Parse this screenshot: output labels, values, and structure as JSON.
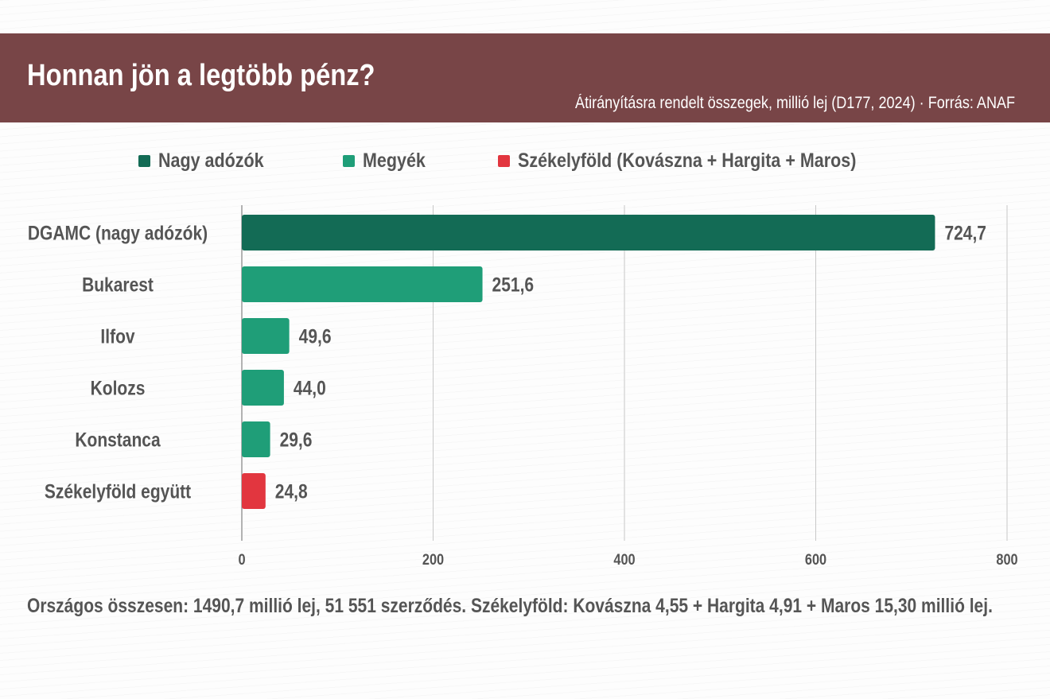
{
  "header": {
    "title": "Honnan jön a legtöbb pénz?",
    "subtitle": "Átirányításra rendelt összegek, millió lej (D177, 2024) · Forrás: ANAF"
  },
  "legend": {
    "items": [
      {
        "label": "Nagy adózók",
        "color": "#136b55"
      },
      {
        "label": "Megyék",
        "color": "#1f9e78"
      },
      {
        "label": "Székelyföld (Kovászna + Hargita + Maros)",
        "color": "#e2363f"
      }
    ]
  },
  "chart_data": {
    "type": "bar",
    "orientation": "horizontal",
    "categories": [
      "DGAMC (nagy adózók)",
      "Bukarest",
      "Ilfov",
      "Kolozs",
      "Konstanca",
      "Székelyföld együtt"
    ],
    "values": [
      724.7,
      251.6,
      49.6,
      44.0,
      29.6,
      24.8
    ],
    "value_labels": [
      "724,7",
      "251,6",
      "49,6",
      "44,0",
      "29,6",
      "24,8"
    ],
    "bar_colors": [
      "#136b55",
      "#1f9e78",
      "#1f9e78",
      "#1f9e78",
      "#1f9e78",
      "#e2363f"
    ],
    "xlim": [
      0,
      800
    ],
    "xticks": [
      0,
      200,
      400,
      600,
      800
    ],
    "xtick_labels": [
      "0",
      "200",
      "400",
      "600",
      "800"
    ],
    "grid": "vertical"
  },
  "footnote": "Országos összesen: 1490,7 millió lej, 51 551 szerződés. Székelyföld: Kovászna 4,55 + Hargita 4,91 + Maros 15,30 millió lej."
}
